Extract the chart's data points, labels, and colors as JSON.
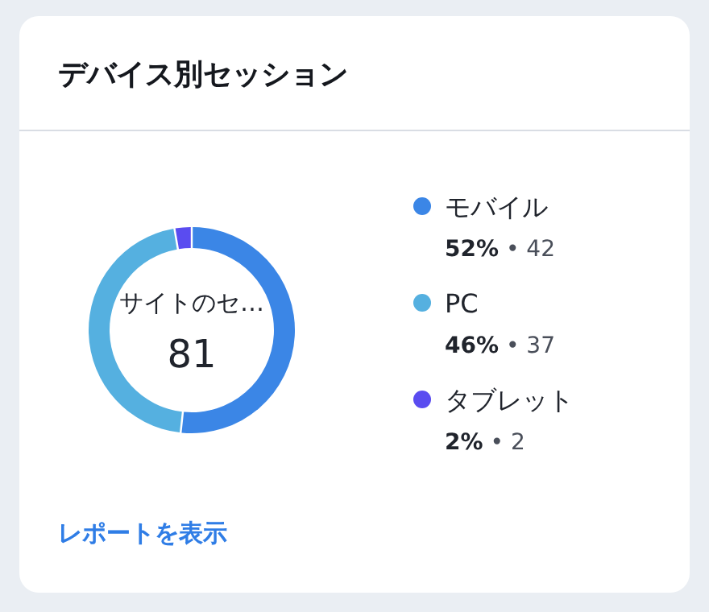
{
  "chart_data": {
    "type": "donut",
    "title": "デバイス別セッション",
    "categories": [
      "モバイル",
      "PC",
      "タブレット"
    ],
    "values": [
      42,
      37,
      2
    ],
    "value_labels": [
      "52% • 42",
      "46% • 37",
      "2% • 2"
    ],
    "colors": [
      "#3b86e6",
      "#55b0e0",
      "#5a4cf0"
    ],
    "legend": "right",
    "annotations": [
      "サイトのセ…",
      "81",
      "レポートを表示"
    ]
  }
}
